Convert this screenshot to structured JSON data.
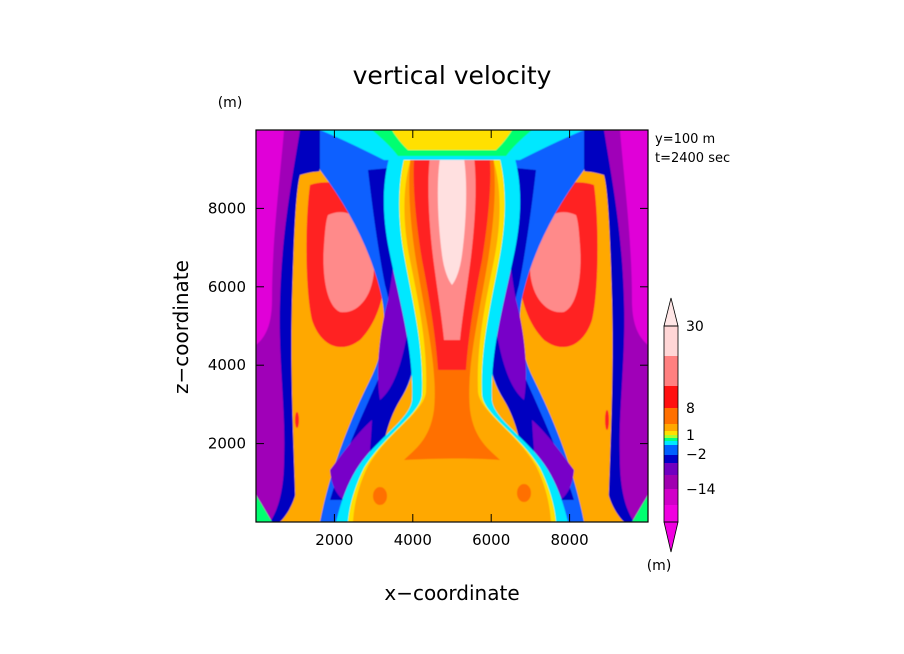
{
  "chart_data": {
    "type": "heatmap",
    "title": "vertical velocity",
    "xlabel": "x−coordinate",
    "ylabel": "z−coordinate",
    "y_unit": "(m)",
    "colorbar_unit": "(m)",
    "annotations": [
      "y=100 m",
      "t=2400 sec"
    ],
    "xlim": [
      0,
      10000
    ],
    "ylim": [
      0,
      10000
    ],
    "x_ticks": [
      2000,
      4000,
      6000,
      8000
    ],
    "y_ticks": [
      2000,
      4000,
      6000,
      8000
    ],
    "x_tick_labels": [
      "2000",
      "4000",
      "6000",
      "8000"
    ],
    "y_tick_labels": [
      "2000",
      "4000",
      "6000",
      "8000"
    ],
    "colorbar": {
      "tick_labels": [
        "30",
        "8",
        "1",
        "−2",
        "−14"
      ],
      "tick_values": [
        30,
        8,
        1,
        -2,
        -14
      ],
      "bands": [
        {
          "color": "#ffd6d6"
        },
        {
          "color": "#ff8080"
        },
        {
          "color": "#ff1010"
        },
        {
          "color": "#ff7000"
        },
        {
          "color": "#ffa800"
        },
        {
          "color": "#ffe000"
        },
        {
          "color": "#a8ff30"
        },
        {
          "color": "#00ff80"
        },
        {
          "color": "#00e8ff"
        },
        {
          "color": "#0060ff"
        },
        {
          "color": "#0000c8"
        },
        {
          "color": "#7000c0"
        },
        {
          "color": "#a000b0"
        },
        {
          "color": "#d000c8"
        },
        {
          "color": "#f000e0"
        }
      ]
    },
    "palette": {
      "core": "#ffe0e0",
      "pink": "#ff8a8a",
      "red": "#ff2020",
      "orange_red": "#ff7000",
      "orange": "#ffa800",
      "yellow": "#ffe000",
      "green": "#00ff70",
      "cyan": "#00e8ff",
      "blue": "#1060ff",
      "navy": "#0000c0",
      "violet": "#7800c8",
      "purple": "#a000b8",
      "magenta": "#e000d8"
    }
  }
}
